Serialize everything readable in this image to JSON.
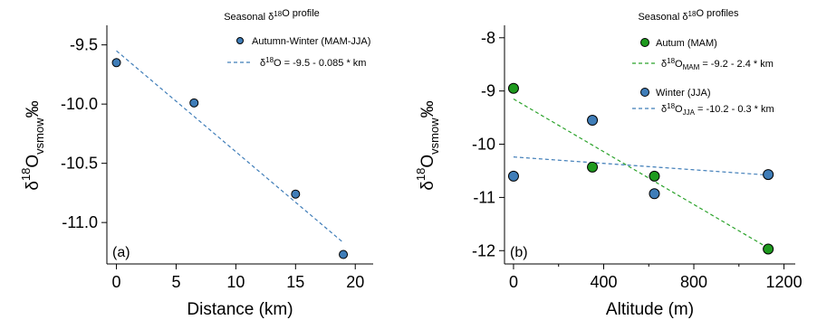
{
  "colors": {
    "blue_marker": "#3f7db8",
    "green_marker": "#1e9a1e",
    "blue_line": "#3f7db8",
    "green_line": "#2aa22a",
    "axis": "#000000"
  },
  "chart_data": [
    {
      "type": "scatter",
      "panel_label": "(a)",
      "title": "Seasonal δ¹⁸O profile",
      "xlabel": "Distance (km)",
      "ylabel": "δ¹⁸O‰ vsmow",
      "xlim": [
        -0.8,
        21.5
      ],
      "ylim": [
        -11.35,
        -9.35
      ],
      "xticks": [
        0,
        5,
        10,
        15,
        20
      ],
      "xtick_labels": [
        "0",
        "5",
        "10",
        "15",
        "20"
      ],
      "yticks": [
        -9.5,
        -10.0,
        -10.5,
        -11.0
      ],
      "ytick_labels": [
        "-9.5",
        "-10.0",
        "-10.5",
        "-11.0"
      ],
      "grid": false,
      "legend_position": "top-right",
      "series": [
        {
          "name": "Autumn-Winter (MAM-JJA)",
          "kind": "points",
          "color": "#3f7db8",
          "x": [
            0,
            6.5,
            15,
            19
          ],
          "y": [
            -9.65,
            -9.99,
            -10.76,
            -11.27
          ]
        },
        {
          "name": "δ¹⁸O = -9.5 - 0.085 * km",
          "kind": "fit",
          "color": "#3f7db8",
          "x": [
            0,
            19
          ],
          "y": [
            -9.55,
            -11.17
          ]
        }
      ]
    },
    {
      "type": "scatter",
      "panel_label": "(b)",
      "title": "Seasonal δ¹⁸O profiles",
      "xlabel": "Altitude (m)",
      "ylabel": "δ¹⁸O‰ vsmow",
      "xlim": [
        -40,
        1250
      ],
      "ylim": [
        -12.25,
        -7.8
      ],
      "xticks": [
        0,
        400,
        800,
        1200
      ],
      "xtick_labels": [
        "0",
        "400",
        "800",
        "1200"
      ],
      "minor_xticks": [
        200,
        600,
        1000
      ],
      "yticks": [
        -8,
        -9,
        -10,
        -11,
        -12
      ],
      "ytick_labels": [
        "-8",
        "-9",
        "-10",
        "-11",
        "-12"
      ],
      "grid": false,
      "legend_position": "top-right",
      "series": [
        {
          "name": "Autum (MAM)",
          "kind": "points",
          "color": "#1e9a1e",
          "x": [
            0,
            350,
            625,
            1130
          ],
          "y": [
            -8.95,
            -10.43,
            -10.6,
            -11.97
          ]
        },
        {
          "name": "δ¹⁸O MAM = -9.2 - 2.4 * km",
          "kind": "fit",
          "color": "#2aa22a",
          "x": [
            0,
            1130
          ],
          "y": [
            -9.15,
            -11.95
          ]
        },
        {
          "name": "Winter (JJA)",
          "kind": "points",
          "color": "#3f7db8",
          "x": [
            0,
            350,
            625,
            1130
          ],
          "y": [
            -10.6,
            -9.55,
            -10.93,
            -10.57
          ]
        },
        {
          "name": "δ¹⁸O JJA = -10.2 - 0.3 * km",
          "kind": "fit",
          "color": "#3f7db8",
          "x": [
            0,
            1130
          ],
          "y": [
            -10.24,
            -10.58
          ]
        }
      ]
    }
  ]
}
